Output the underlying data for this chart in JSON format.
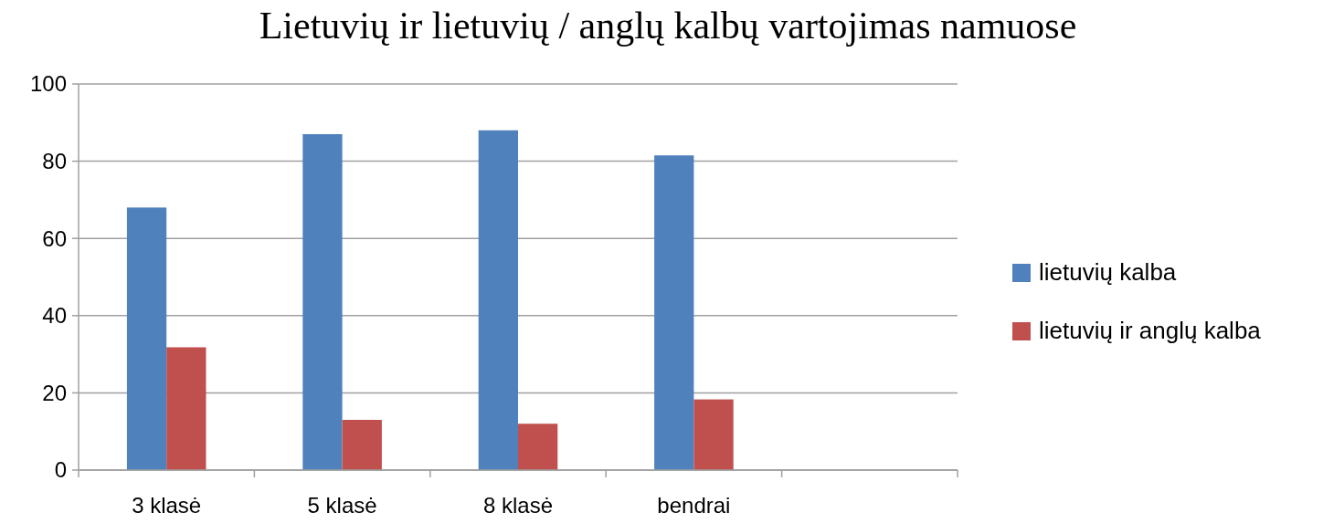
{
  "chart_data": {
    "type": "bar",
    "title": "Lietuvių ir lietuvių / anglų kalbų vartojimas namuose",
    "categories": [
      "3 klasė",
      "5 klasė",
      "8 klasė",
      "bendrai",
      null
    ],
    "series": [
      {
        "name": "lietuvių kalba",
        "color": "#4f81bd",
        "values": [
          68,
          87,
          88,
          81.5,
          null
        ]
      },
      {
        "name": "lietuvių ir anglų kalba",
        "color": "#c0504d",
        "values": [
          31.8,
          13,
          12,
          18.3,
          null
        ]
      }
    ],
    "ylim": [
      0,
      100
    ],
    "yticks": [
      0,
      20,
      40,
      60,
      80,
      100
    ],
    "grid": "y",
    "legend": "right"
  }
}
